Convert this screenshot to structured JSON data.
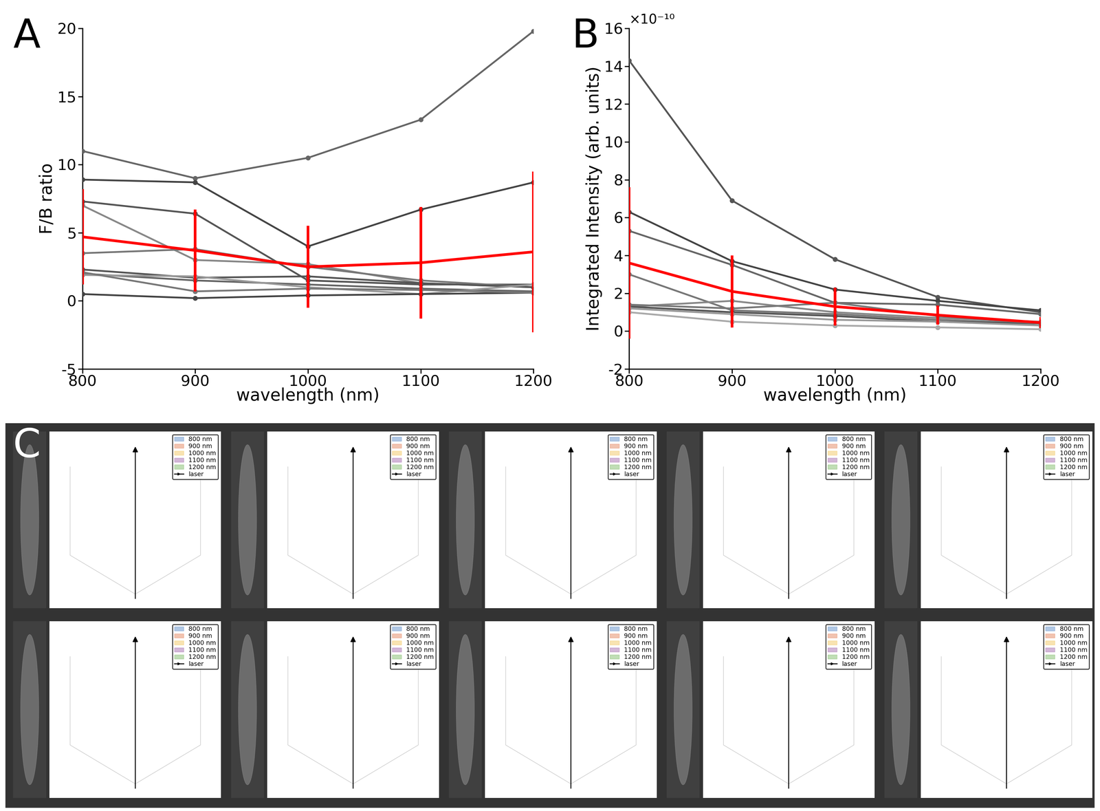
{
  "chart_data": [
    {
      "type": "line",
      "panel_label": "A",
      "x_label": "wavelength (nm)",
      "y_label": "F/B ratio",
      "x": [
        800,
        900,
        1000,
        1100,
        1200
      ],
      "xlim": [
        800,
        1200
      ],
      "xticks": [
        800,
        900,
        1000,
        1100,
        1200
      ],
      "ylim": [
        -5,
        20
      ],
      "yticks": [
        -5,
        0,
        5,
        10,
        15,
        20
      ],
      "grid": false,
      "series": [
        {
          "color": "#666666",
          "values": [
            11.0,
            9.0,
            10.5,
            13.3,
            19.8
          ]
        },
        {
          "color": "#444444",
          "values": [
            8.9,
            8.7,
            4.0,
            6.7,
            8.7
          ]
        },
        {
          "color": "#555555",
          "values": [
            7.3,
            6.4,
            1.5,
            1.2,
            1.2
          ]
        },
        {
          "color": "#888888",
          "values": [
            7.0,
            3.0,
            2.7,
            1.3,
            1.0
          ]
        },
        {
          "color": "#777777",
          "values": [
            3.5,
            3.8,
            2.5,
            1.5,
            1.0
          ]
        },
        {
          "color": "#555555",
          "values": [
            2.3,
            1.7,
            1.8,
            1.3,
            1.0
          ]
        },
        {
          "color": "#666666",
          "values": [
            2.0,
            1.5,
            1.2,
            0.9,
            0.7
          ]
        },
        {
          "color": "#999999",
          "values": [
            1.9,
            1.8,
            1.0,
            0.5,
            1.2
          ]
        },
        {
          "color": "#444444",
          "values": [
            0.5,
            0.2,
            0.4,
            0.5,
            0.6
          ]
        },
        {
          "color": "#777777",
          "values": [
            2.1,
            0.7,
            0.9,
            0.8,
            0.6
          ]
        },
        {
          "color": "#ff0000",
          "values": [
            4.7,
            3.7,
            2.5,
            2.8,
            3.6
          ],
          "error": [
            3.5,
            3.0,
            3.0,
            4.1,
            5.9
          ]
        }
      ]
    },
    {
      "type": "line",
      "panel_label": "B",
      "x_label": "wavelength (nm)",
      "y_label": "Integrated Intensity (arb. units)",
      "annotations": [
        "×10⁻¹⁰"
      ],
      "x": [
        800,
        900,
        1000,
        1100,
        1200
      ],
      "xlim": [
        800,
        1200
      ],
      "xticks": [
        800,
        900,
        1000,
        1100,
        1200
      ],
      "ylim": [
        -2,
        16
      ],
      "yticks": [
        -2,
        0,
        2,
        4,
        6,
        8,
        10,
        12,
        14,
        16
      ],
      "grid": false,
      "series": [
        {
          "color": "#555555",
          "values": [
            14.3,
            6.9,
            3.8,
            1.8,
            1.0
          ]
        },
        {
          "color": "#444444",
          "values": [
            6.3,
            3.7,
            2.2,
            1.6,
            1.1
          ]
        },
        {
          "color": "#666666",
          "values": [
            5.3,
            3.5,
            1.5,
            1.4,
            0.9
          ]
        },
        {
          "color": "#777777",
          "values": [
            3.0,
            1.1,
            0.9,
            0.6,
            0.4
          ]
        },
        {
          "color": "#888888",
          "values": [
            1.3,
            1.6,
            1.0,
            0.7,
            0.5
          ]
        },
        {
          "color": "#555555",
          "values": [
            1.3,
            1.0,
            0.8,
            0.5,
            0.4
          ]
        },
        {
          "color": "#999999",
          "values": [
            1.2,
            0.9,
            0.6,
            0.5,
            0.3
          ]
        },
        {
          "color": "#aaaaaa",
          "values": [
            1.0,
            0.5,
            0.3,
            0.2,
            0.1
          ]
        },
        {
          "color": "#777777",
          "values": [
            1.4,
            1.2,
            1.5,
            0.8,
            0.4
          ]
        },
        {
          "color": "#ff0000",
          "values": [
            3.6,
            2.1,
            1.3,
            0.85,
            0.45
          ],
          "error": [
            4.0,
            1.9,
            1.0,
            0.5,
            0.3
          ]
        }
      ]
    }
  ],
  "panel_c": {
    "panel_label": "C",
    "legend": [
      {
        "name": "800 nm",
        "color": "#1f5fb4"
      },
      {
        "name": "900 nm",
        "color": "#d9531e"
      },
      {
        "name": "1000 nm",
        "color": "#edb120"
      },
      {
        "name": "1100 nm",
        "color": "#7e2f8e"
      },
      {
        "name": "1200 nm",
        "color": "#4ca02c"
      },
      {
        "name": "laser",
        "color": "#000000"
      }
    ],
    "subplots": 10
  }
}
